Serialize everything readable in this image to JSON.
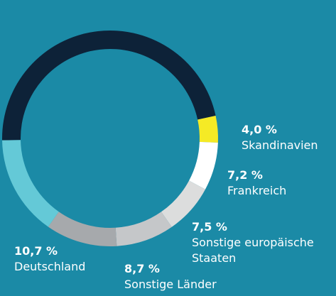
{
  "chart_data": {
    "type": "donut",
    "categories": [
      null,
      "Skandinavien",
      "Frankreich",
      "Sonstige europäische Staaten",
      "Sonstige Länder",
      "Deutschland",
      null
    ],
    "values": [
      46.9,
      4.0,
      7.2,
      7.5,
      8.7,
      10.7,
      15
    ],
    "value_labels": [
      null,
      "4,0 %",
      "7,2 %",
      "7,5 %",
      "8,7 %",
      "10,7 %",
      null
    ],
    "colors": [
      "#0d2238",
      "#f5ea25",
      "#ffffff",
      "#dcdddd",
      "#c5c7c9",
      "#a6a9ac",
      "#64c9d7"
    ]
  }
}
